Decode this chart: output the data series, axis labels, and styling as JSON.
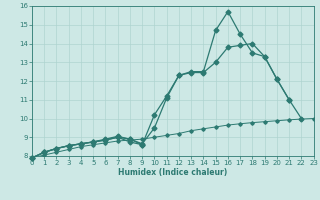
{
  "title": "",
  "xlabel": "Humidex (Indice chaleur)",
  "xlim": [
    0,
    23
  ],
  "ylim": [
    8,
    16
  ],
  "yticks": [
    8,
    9,
    10,
    11,
    12,
    13,
    14,
    15,
    16
  ],
  "xticks": [
    0,
    1,
    2,
    3,
    4,
    5,
    6,
    7,
    8,
    9,
    10,
    11,
    12,
    13,
    14,
    15,
    16,
    17,
    18,
    19,
    20,
    21,
    22,
    23
  ],
  "bg_color": "#cde8e5",
  "line_color": "#2d7a72",
  "grid_color": "#afd4d0",
  "s0x": [
    0,
    1,
    2,
    3,
    4,
    5,
    6,
    7,
    8,
    9,
    10,
    11,
    12,
    13,
    14,
    15,
    16,
    17,
    18,
    19,
    20,
    21,
    22
  ],
  "s0y": [
    7.9,
    8.2,
    8.4,
    8.55,
    8.65,
    8.75,
    8.85,
    9.0,
    8.75,
    8.6,
    10.2,
    11.2,
    12.3,
    12.5,
    12.5,
    14.7,
    15.7,
    14.5,
    13.5,
    13.3,
    12.1,
    11.0,
    10.0
  ],
  "s1x": [
    0,
    1,
    2,
    3,
    4,
    5,
    6,
    7,
    8,
    9,
    10,
    11,
    12,
    13,
    14,
    15,
    16,
    17,
    18,
    19,
    20,
    21
  ],
  "s1y": [
    7.9,
    8.2,
    8.4,
    8.55,
    8.65,
    8.75,
    8.9,
    9.05,
    8.9,
    8.65,
    9.5,
    11.1,
    12.3,
    12.45,
    12.45,
    13.0,
    13.8,
    13.9,
    14.0,
    13.3,
    12.1,
    11.0
  ],
  "s2x": [
    0,
    1,
    2,
    3,
    4,
    5,
    6,
    7,
    8,
    9
  ],
  "s2y": [
    7.9,
    8.2,
    8.4,
    8.55,
    8.65,
    8.75,
    8.85,
    9.0,
    8.9,
    8.6
  ],
  "s3x": [
    0,
    1,
    2,
    3,
    4,
    5,
    6,
    7,
    8,
    9,
    10,
    11,
    12,
    13,
    14,
    15,
    16,
    17,
    18,
    19,
    20,
    21,
    22,
    23
  ],
  "s3y": [
    7.9,
    8.05,
    8.2,
    8.35,
    8.5,
    8.6,
    8.7,
    8.8,
    8.85,
    8.9,
    9.0,
    9.1,
    9.2,
    9.35,
    9.45,
    9.55,
    9.65,
    9.72,
    9.78,
    9.83,
    9.88,
    9.93,
    9.97,
    10.0
  ]
}
